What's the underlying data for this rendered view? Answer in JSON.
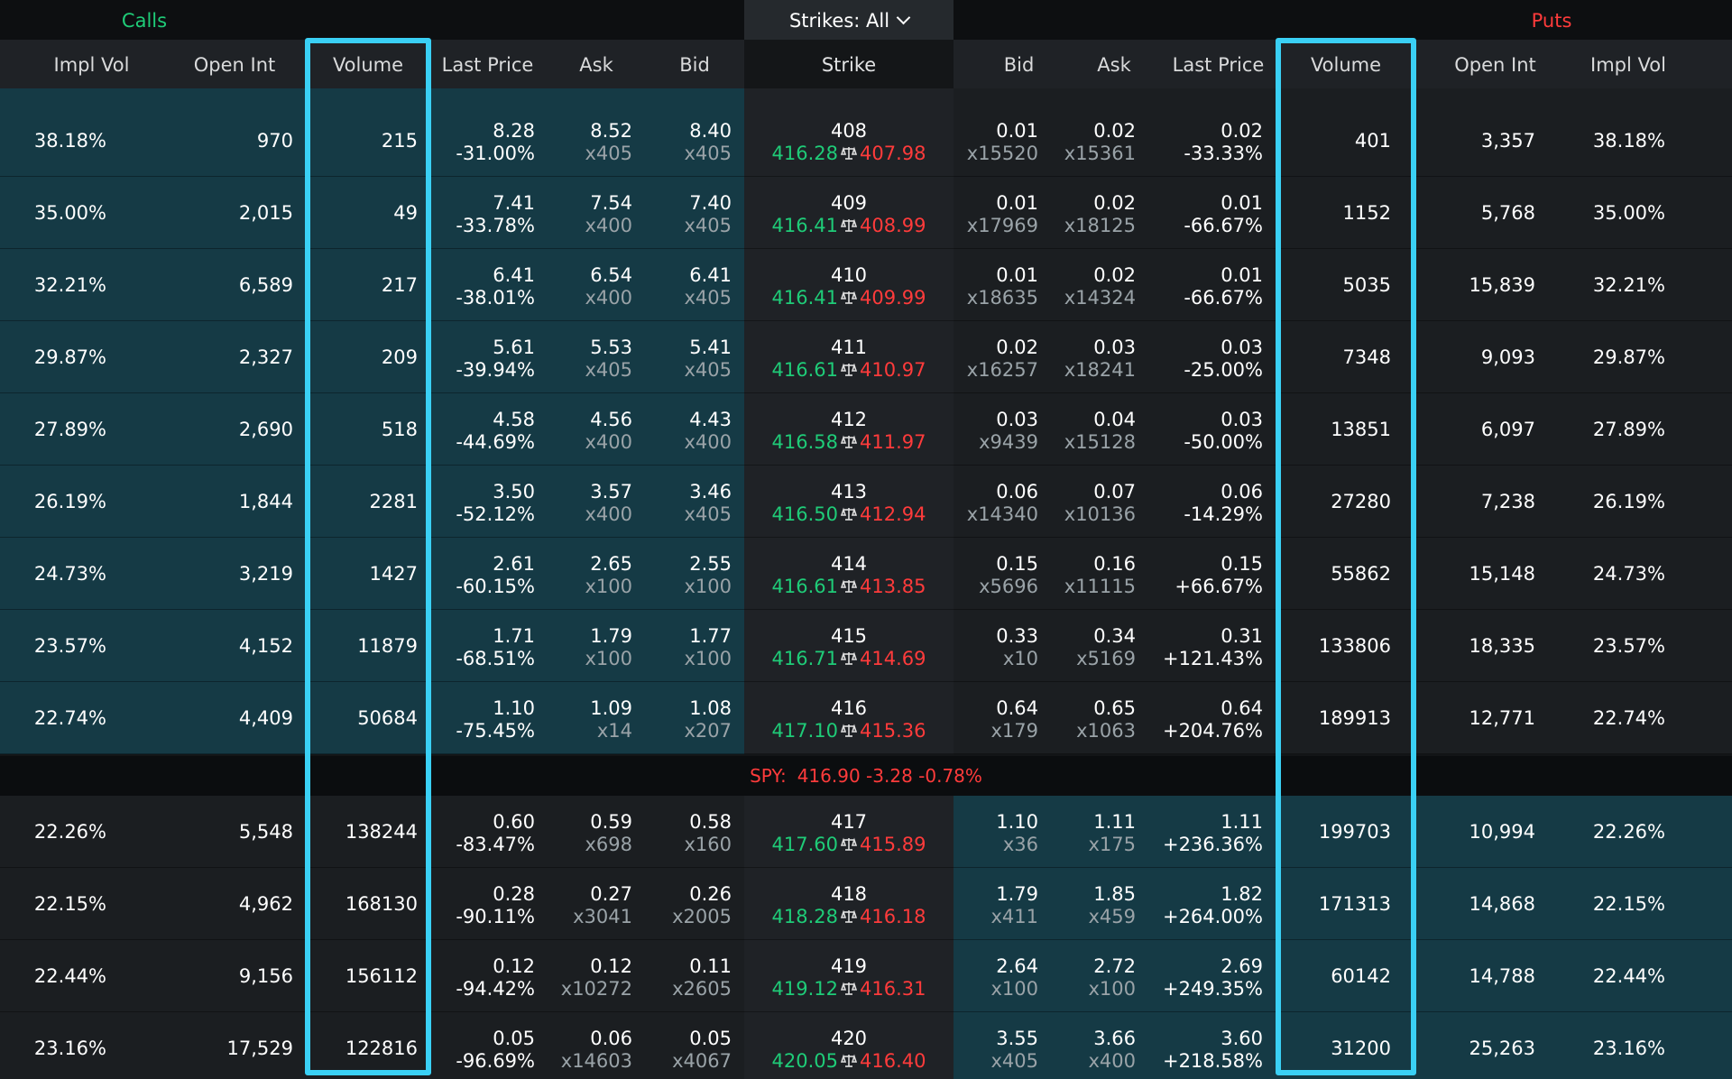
{
  "titles": {
    "calls": "Calls",
    "puts": "Puts",
    "strikes": "Strikes: All"
  },
  "headers": {
    "calls": [
      "Impl Vol",
      "Open Int",
      "Volume",
      "Last Price",
      "Ask",
      "Bid"
    ],
    "strike": "Strike",
    "puts": [
      "Bid",
      "Ask",
      "Last Price",
      "Volume",
      "Open Int",
      "Impl Vol"
    ]
  },
  "spy": {
    "symbol": "SPY:",
    "quote": "416.90 -3.28 -0.78%"
  },
  "colors": {
    "itm_bg": "#153a45",
    "otm_bg": "#1b1e21",
    "green": "#1fcc78",
    "red": "#ff3b3b",
    "highlight": "#3ad0f5"
  },
  "rows": [
    {
      "strike": "408",
      "strike_lo": "416.28",
      "strike_hi": "407.98",
      "call": {
        "iv": "38.18%",
        "oi": "970",
        "vol": "215",
        "last": "8.28",
        "chg": "-31.00%",
        "ask": "8.52",
        "ask_size": "x405",
        "bid": "8.40",
        "bid_size": "x405"
      },
      "put": {
        "bid": "0.01",
        "bid_size": "x15520",
        "ask": "0.02",
        "ask_size": "x15361",
        "last": "0.02",
        "chg": "-33.33%",
        "vol": "401",
        "oi": "3,357",
        "iv": "38.18%"
      }
    },
    {
      "strike": "409",
      "strike_lo": "416.41",
      "strike_hi": "408.99",
      "call": {
        "iv": "35.00%",
        "oi": "2,015",
        "vol": "49",
        "last": "7.41",
        "chg": "-33.78%",
        "ask": "7.54",
        "ask_size": "x400",
        "bid": "7.40",
        "bid_size": "x405"
      },
      "put": {
        "bid": "0.01",
        "bid_size": "x17969",
        "ask": "0.02",
        "ask_size": "x18125",
        "last": "0.01",
        "chg": "-66.67%",
        "vol": "1152",
        "oi": "5,768",
        "iv": "35.00%"
      }
    },
    {
      "strike": "410",
      "strike_lo": "416.41",
      "strike_hi": "409.99",
      "call": {
        "iv": "32.21%",
        "oi": "6,589",
        "vol": "217",
        "last": "6.41",
        "chg": "-38.01%",
        "ask": "6.54",
        "ask_size": "x400",
        "bid": "6.41",
        "bid_size": "x405"
      },
      "put": {
        "bid": "0.01",
        "bid_size": "x18635",
        "ask": "0.02",
        "ask_size": "x14324",
        "last": "0.01",
        "chg": "-66.67%",
        "vol": "5035",
        "oi": "15,839",
        "iv": "32.21%"
      }
    },
    {
      "strike": "411",
      "strike_lo": "416.61",
      "strike_hi": "410.97",
      "call": {
        "iv": "29.87%",
        "oi": "2,327",
        "vol": "209",
        "last": "5.61",
        "chg": "-39.94%",
        "ask": "5.53",
        "ask_size": "x405",
        "bid": "5.41",
        "bid_size": "x405"
      },
      "put": {
        "bid": "0.02",
        "bid_size": "x16257",
        "ask": "0.03",
        "ask_size": "x18241",
        "last": "0.03",
        "chg": "-25.00%",
        "vol": "7348",
        "oi": "9,093",
        "iv": "29.87%"
      }
    },
    {
      "strike": "412",
      "strike_lo": "416.58",
      "strike_hi": "411.97",
      "call": {
        "iv": "27.89%",
        "oi": "2,690",
        "vol": "518",
        "last": "4.58",
        "chg": "-44.69%",
        "ask": "4.56",
        "ask_size": "x400",
        "bid": "4.43",
        "bid_size": "x400"
      },
      "put": {
        "bid": "0.03",
        "bid_size": "x9439",
        "ask": "0.04",
        "ask_size": "x15128",
        "last": "0.03",
        "chg": "-50.00%",
        "vol": "13851",
        "oi": "6,097",
        "iv": "27.89%"
      }
    },
    {
      "strike": "413",
      "strike_lo": "416.50",
      "strike_hi": "412.94",
      "call": {
        "iv": "26.19%",
        "oi": "1,844",
        "vol": "2281",
        "last": "3.50",
        "chg": "-52.12%",
        "ask": "3.57",
        "ask_size": "x400",
        "bid": "3.46",
        "bid_size": "x405"
      },
      "put": {
        "bid": "0.06",
        "bid_size": "x14340",
        "ask": "0.07",
        "ask_size": "x10136",
        "last": "0.06",
        "chg": "-14.29%",
        "vol": "27280",
        "oi": "7,238",
        "iv": "26.19%"
      }
    },
    {
      "strike": "414",
      "strike_lo": "416.61",
      "strike_hi": "413.85",
      "call": {
        "iv": "24.73%",
        "oi": "3,219",
        "vol": "1427",
        "last": "2.61",
        "chg": "-60.15%",
        "ask": "2.65",
        "ask_size": "x100",
        "bid": "2.55",
        "bid_size": "x100"
      },
      "put": {
        "bid": "0.15",
        "bid_size": "x5696",
        "ask": "0.16",
        "ask_size": "x11115",
        "last": "0.15",
        "chg": "+66.67%",
        "vol": "55862",
        "oi": "15,148",
        "iv": "24.73%"
      }
    },
    {
      "strike": "415",
      "strike_lo": "416.71",
      "strike_hi": "414.69",
      "call": {
        "iv": "23.57%",
        "oi": "4,152",
        "vol": "11879",
        "last": "1.71",
        "chg": "-68.51%",
        "ask": "1.79",
        "ask_size": "x100",
        "bid": "1.77",
        "bid_size": "x100"
      },
      "put": {
        "bid": "0.33",
        "bid_size": "x10",
        "ask": "0.34",
        "ask_size": "x5169",
        "last": "0.31",
        "chg": "+121.43%",
        "vol": "133806",
        "oi": "18,335",
        "iv": "23.57%"
      }
    },
    {
      "strike": "416",
      "strike_lo": "417.10",
      "strike_hi": "415.36",
      "call": {
        "iv": "22.74%",
        "oi": "4,409",
        "vol": "50684",
        "last": "1.10",
        "chg": "-75.45%",
        "ask": "1.09",
        "ask_size": "x14",
        "bid": "1.08",
        "bid_size": "x207"
      },
      "put": {
        "bid": "0.64",
        "bid_size": "x179",
        "ask": "0.65",
        "ask_size": "x1063",
        "last": "0.64",
        "chg": "+204.76%",
        "vol": "189913",
        "oi": "12,771",
        "iv": "22.74%"
      }
    },
    {
      "strike": "417",
      "strike_lo": "417.60",
      "strike_hi": "415.89",
      "call": {
        "iv": "22.26%",
        "oi": "5,548",
        "vol": "138244",
        "last": "0.60",
        "chg": "-83.47%",
        "ask": "0.59",
        "ask_size": "x698",
        "bid": "0.58",
        "bid_size": "x160"
      },
      "put": {
        "bid": "1.10",
        "bid_size": "x36",
        "ask": "1.11",
        "ask_size": "x175",
        "last": "1.11",
        "chg": "+236.36%",
        "vol": "199703",
        "oi": "10,994",
        "iv": "22.26%"
      }
    },
    {
      "strike": "418",
      "strike_lo": "418.28",
      "strike_hi": "416.18",
      "call": {
        "iv": "22.15%",
        "oi": "4,962",
        "vol": "168130",
        "last": "0.28",
        "chg": "-90.11%",
        "ask": "0.27",
        "ask_size": "x3041",
        "bid": "0.26",
        "bid_size": "x2005"
      },
      "put": {
        "bid": "1.79",
        "bid_size": "x411",
        "ask": "1.85",
        "ask_size": "x459",
        "last": "1.82",
        "chg": "+264.00%",
        "vol": "171313",
        "oi": "14,868",
        "iv": "22.15%"
      }
    },
    {
      "strike": "419",
      "strike_lo": "419.12",
      "strike_hi": "416.31",
      "call": {
        "iv": "22.44%",
        "oi": "9,156",
        "vol": "156112",
        "last": "0.12",
        "chg": "-94.42%",
        "ask": "0.12",
        "ask_size": "x10272",
        "bid": "0.11",
        "bid_size": "x2605"
      },
      "put": {
        "bid": "2.64",
        "bid_size": "x100",
        "ask": "2.72",
        "ask_size": "x100",
        "last": "2.69",
        "chg": "+249.35%",
        "vol": "60142",
        "oi": "14,788",
        "iv": "22.44%"
      }
    },
    {
      "strike": "420",
      "strike_lo": "420.05",
      "strike_hi": "416.40",
      "call": {
        "iv": "23.16%",
        "oi": "17,529",
        "vol": "122816",
        "last": "0.05",
        "chg": "-96.69%",
        "ask": "0.06",
        "ask_size": "x14603",
        "bid": "0.05",
        "bid_size": "x4067"
      },
      "put": {
        "bid": "3.55",
        "bid_size": "x405",
        "ask": "3.66",
        "ask_size": "x400",
        "last": "3.60",
        "chg": "+218.58%",
        "vol": "31200",
        "oi": "25,263",
        "iv": "23.16%"
      }
    }
  ]
}
